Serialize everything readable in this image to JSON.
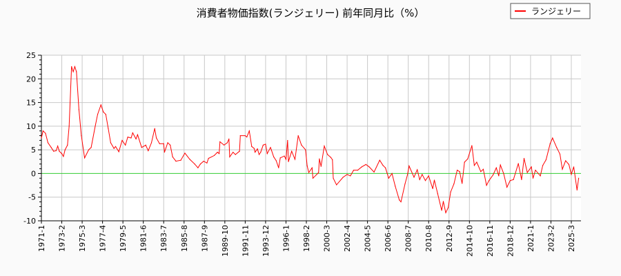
{
  "chart_data": {
    "type": "line",
    "title": "消費者物価指数(ランジェリー) 前年同月比（%）",
    "xlabel": "",
    "ylabel": "",
    "ylim": [
      -10,
      25
    ],
    "yticks": [
      25,
      20,
      15,
      10,
      5,
      0,
      -5,
      -10
    ],
    "xticks": [
      "1971-1",
      "1973-2",
      "1975-3",
      "1977-4",
      "1979-5",
      "1981-6",
      "1983-7",
      "1985-8",
      "1987-9",
      "1989-10",
      "1991-11",
      "1993-12",
      "1996-1",
      "1998-2",
      "2000-3",
      "2002-4",
      "2004-5",
      "2006-6",
      "2008-7",
      "2010-8",
      "2012-9",
      "2014-10",
      "2016-11",
      "2018-12",
      "2021-1",
      "2023-2",
      "2025-3"
    ],
    "grid": true,
    "legend_position": "top-right",
    "zero_line_color": "#33cc33",
    "series": [
      {
        "name": "ランジェリー",
        "color": "#ff0000",
        "points": [
          [
            "1971-1",
            7.5
          ],
          [
            "1971-3",
            9
          ],
          [
            "1971-6",
            8.5
          ],
          [
            "1971-9",
            6.5
          ],
          [
            "1972-1",
            5.5
          ],
          [
            "1972-4",
            4.7
          ],
          [
            "1972-7",
            4.8
          ],
          [
            "1972-9",
            5.8
          ],
          [
            "1972-11",
            4.7
          ],
          [
            "1973-2",
            4.2
          ],
          [
            "1973-4",
            3.6
          ],
          [
            "1973-6",
            5
          ],
          [
            "1973-9",
            6
          ],
          [
            "1973-11",
            10
          ],
          [
            "1974-2",
            22.6
          ],
          [
            "1974-4",
            21.5
          ],
          [
            "1974-6",
            22.6
          ],
          [
            "1974-8",
            21.5
          ],
          [
            "1974-11",
            13.5
          ],
          [
            "1975-2",
            8
          ],
          [
            "1975-6",
            3.3
          ],
          [
            "1975-11",
            5
          ],
          [
            "1976-2",
            5.5
          ],
          [
            "1976-7",
            10
          ],
          [
            "1976-10",
            12.5
          ],
          [
            "1977-2",
            14.5
          ],
          [
            "1977-5",
            13
          ],
          [
            "1977-8",
            12.5
          ],
          [
            "1977-11",
            9.5
          ],
          [
            "1978-2",
            6.5
          ],
          [
            "1978-6",
            5.3
          ],
          [
            "1978-8",
            5.7
          ],
          [
            "1978-12",
            4.6
          ],
          [
            "1979-4",
            7
          ],
          [
            "1979-8",
            6
          ],
          [
            "1979-11",
            7.7
          ],
          [
            "1980-3",
            7.5
          ],
          [
            "1980-5",
            8.6
          ],
          [
            "1980-9",
            7.3
          ],
          [
            "1980-11",
            8.2
          ],
          [
            "1981-4",
            5.5
          ],
          [
            "1981-9",
            6
          ],
          [
            "1981-12",
            4.8
          ],
          [
            "1982-4",
            6.5
          ],
          [
            "1982-8",
            9.5
          ],
          [
            "1982-10",
            7.5
          ],
          [
            "1983-2",
            6.3
          ],
          [
            "1983-7",
            6.3
          ],
          [
            "1983-8",
            4.5
          ],
          [
            "1983-12",
            6.5
          ],
          [
            "1984-3",
            6
          ],
          [
            "1984-6",
            3.5
          ],
          [
            "1984-10",
            2.6
          ],
          [
            "1985-4",
            2.8
          ],
          [
            "1985-9",
            4.3
          ],
          [
            "1986-3",
            3
          ],
          [
            "1986-9",
            2
          ],
          [
            "1987-1",
            1.2
          ],
          [
            "1987-4",
            2
          ],
          [
            "1987-8",
            2.6
          ],
          [
            "1987-12",
            2.2
          ],
          [
            "1988-2",
            3.2
          ],
          [
            "1988-9",
            3.8
          ],
          [
            "1989-1",
            4.5
          ],
          [
            "1989-3",
            4.2
          ],
          [
            "1989-4",
            6.7
          ],
          [
            "1989-9",
            6
          ],
          [
            "1990-1",
            6.5
          ],
          [
            "1990-3",
            7.3
          ],
          [
            "1990-4",
            3.5
          ],
          [
            "1990-8",
            4.5
          ],
          [
            "1990-11",
            4
          ],
          [
            "1991-4",
            4.7
          ],
          [
            "1991-5",
            8
          ],
          [
            "1991-11",
            8
          ],
          [
            "1992-1",
            7.7
          ],
          [
            "1992-4",
            9
          ],
          [
            "1992-7",
            5.7
          ],
          [
            "1992-10",
            5.3
          ],
          [
            "1992-11",
            4.5
          ],
          [
            "1993-2",
            5.2
          ],
          [
            "1993-4",
            4
          ],
          [
            "1993-6",
            4.5
          ],
          [
            "1993-9",
            6
          ],
          [
            "1993-12",
            6.2
          ],
          [
            "1994-2",
            4.2
          ],
          [
            "1994-6",
            5.5
          ],
          [
            "1994-7",
            5
          ],
          [
            "1994-10",
            3.5
          ],
          [
            "1995-1",
            2.7
          ],
          [
            "1995-4",
            1.2
          ],
          [
            "1995-6",
            3.3
          ],
          [
            "1995-11",
            3.7
          ],
          [
            "1996-1",
            3
          ],
          [
            "1996-3",
            7
          ],
          [
            "1996-4",
            2.5
          ],
          [
            "1996-8",
            4.7
          ],
          [
            "1996-12",
            3
          ],
          [
            "1997-4",
            8
          ],
          [
            "1997-8",
            6
          ],
          [
            "1998-1",
            5
          ],
          [
            "1998-3",
            1.6
          ],
          [
            "1998-5",
            0.2
          ],
          [
            "1998-9",
            1.2
          ],
          [
            "1998-10",
            -1
          ],
          [
            "1999-5",
            0.2
          ],
          [
            "1999-6",
            3.1
          ],
          [
            "1999-8",
            1.5
          ],
          [
            "1999-12",
            5.8
          ],
          [
            "2000-4",
            4
          ],
          [
            "2000-8",
            3.4
          ],
          [
            "2000-10",
            2.9
          ],
          [
            "2000-11",
            -1
          ],
          [
            "2001-3",
            -2.4
          ],
          [
            "2001-11",
            -0.8
          ],
          [
            "2002-4",
            -0.2
          ],
          [
            "2002-8",
            -0.5
          ],
          [
            "2002-12",
            0.7
          ],
          [
            "2003-5",
            0.7
          ],
          [
            "2003-10",
            1.4
          ],
          [
            "2004-3",
            1.9
          ],
          [
            "2004-7",
            1.4
          ],
          [
            "2005-1",
            0.3
          ],
          [
            "2005-8",
            2.8
          ],
          [
            "2005-12",
            1.7
          ],
          [
            "2006-3",
            1.2
          ],
          [
            "2006-7",
            -1
          ],
          [
            "2006-11",
            0
          ],
          [
            "2007-3",
            -2.7
          ],
          [
            "2007-8",
            -5.6
          ],
          [
            "2007-10",
            -6
          ],
          [
            "2008-3",
            -2.2
          ],
          [
            "2008-6",
            -0.3
          ],
          [
            "2008-8",
            1.6
          ],
          [
            "2009-2",
            -0.8
          ],
          [
            "2009-6",
            0.8
          ],
          [
            "2009-9",
            -1.3
          ],
          [
            "2009-12",
            -0.2
          ],
          [
            "2010-4",
            -1.5
          ],
          [
            "2010-8",
            -0.5
          ],
          [
            "2011-1",
            -3.2
          ],
          [
            "2011-3",
            -1.4
          ],
          [
            "2011-7",
            -4.2
          ],
          [
            "2011-12",
            -7.8
          ],
          [
            "2012-2",
            -5.9
          ],
          [
            "2012-5",
            -8.3
          ],
          [
            "2012-8",
            -7.2
          ],
          [
            "2012-11",
            -3.9
          ],
          [
            "2013-3",
            -2.2
          ],
          [
            "2013-7",
            0.7
          ],
          [
            "2013-10",
            0.4
          ],
          [
            "2014-1",
            -2.1
          ],
          [
            "2014-4",
            2.4
          ],
          [
            "2014-8",
            3.1
          ],
          [
            "2015-1",
            5.9
          ],
          [
            "2015-4",
            1.7
          ],
          [
            "2015-7",
            2.4
          ],
          [
            "2015-12",
            0.4
          ],
          [
            "2016-3",
            0.9
          ],
          [
            "2016-7",
            -2.5
          ],
          [
            "2016-10",
            -1.5
          ],
          [
            "2017-3",
            -0.3
          ],
          [
            "2017-7",
            1.2
          ],
          [
            "2017-10",
            -0.5
          ],
          [
            "2017-12",
            1.8
          ],
          [
            "2018-4",
            0
          ],
          [
            "2018-8",
            -2.9
          ],
          [
            "2018-12",
            -1.5
          ],
          [
            "2019-4",
            -1.3
          ],
          [
            "2019-10",
            2.1
          ],
          [
            "2020-2",
            -1.3
          ],
          [
            "2020-5",
            3.2
          ],
          [
            "2020-9",
            0.2
          ],
          [
            "2021-2",
            1.4
          ],
          [
            "2021-4",
            -1
          ],
          [
            "2021-7",
            0.7
          ],
          [
            "2022-1",
            -0.5
          ],
          [
            "2022-4",
            1.7
          ],
          [
            "2022-8",
            2.9
          ],
          [
            "2023-1",
            6.3
          ],
          [
            "2023-4",
            7.5
          ],
          [
            "2023-9",
            5.5
          ],
          [
            "2024-1",
            4.1
          ],
          [
            "2024-4",
            0.9
          ],
          [
            "2024-8",
            2.7
          ],
          [
            "2024-12",
            1.9
          ],
          [
            "2025-3",
            -0.2
          ],
          [
            "2025-6",
            1.4
          ],
          [
            "2025-10",
            -3.5
          ],
          [
            "2025-12",
            -1
          ]
        ]
      }
    ]
  }
}
